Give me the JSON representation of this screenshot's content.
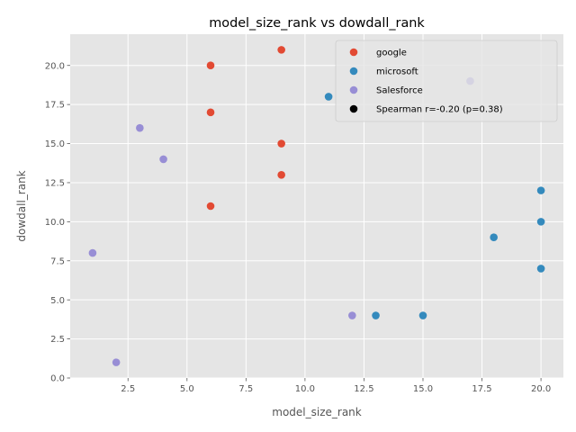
{
  "chart_data": {
    "type": "scatter",
    "title": "model_size_rank vs dowdall_rank",
    "xlabel": "model_size_rank",
    "ylabel": "dowdall_rank",
    "xlim": [
      0.05,
      20.95
    ],
    "ylim": [
      0,
      22
    ],
    "xticks": [
      2.5,
      5.0,
      7.5,
      10.0,
      12.5,
      15.0,
      17.5,
      20.0
    ],
    "xtick_labels": [
      "2.5",
      "5.0",
      "7.5",
      "10.0",
      "12.5",
      "15.0",
      "17.5",
      "20.0"
    ],
    "yticks": [
      0,
      2.5,
      5.0,
      7.5,
      10.0,
      12.5,
      15.0,
      17.5,
      20.0
    ],
    "ytick_labels": [
      "0.0",
      "2.5",
      "5.0",
      "7.5",
      "10.0",
      "12.5",
      "15.0",
      "17.5",
      "20.0"
    ],
    "grid": true,
    "style": "ggplot",
    "legend_position": "top-right",
    "series": [
      {
        "name": "google",
        "color": "#E24A33",
        "points": [
          [
            6,
            20
          ],
          [
            9,
            21
          ],
          [
            6,
            17
          ],
          [
            9,
            15
          ],
          [
            9,
            13
          ],
          [
            6,
            11
          ]
        ]
      },
      {
        "name": "microsoft",
        "color": "#348ABD",
        "points": [
          [
            11,
            18
          ],
          [
            20,
            12
          ],
          [
            20,
            10
          ],
          [
            18,
            9
          ],
          [
            20,
            7
          ],
          [
            13,
            4
          ],
          [
            15,
            4
          ]
        ]
      },
      {
        "name": "Salesforce",
        "color": "#988ED5",
        "points": [
          [
            3,
            16
          ],
          [
            4,
            14
          ],
          [
            1,
            8
          ],
          [
            12,
            4
          ],
          [
            2,
            1
          ],
          [
            17,
            19
          ]
        ]
      }
    ],
    "annotation_entry": {
      "label": "Spearman r=-0.20 (p=0.38)",
      "color": "#000000"
    }
  }
}
